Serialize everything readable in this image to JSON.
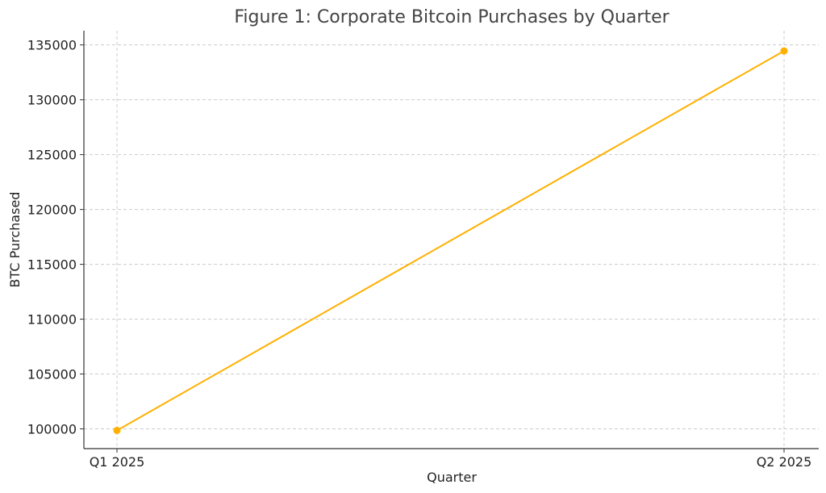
{
  "chart_data": {
    "type": "line",
    "title": "Figure 1: Corporate Bitcoin Purchases by Quarter",
    "xlabel": "Quarter",
    "ylabel": "BTC Purchased",
    "categories": [
      "Q1 2025",
      "Q2 2025"
    ],
    "series": [
      {
        "values": [
          99857,
          134456
        ],
        "color": "#FFB000"
      }
    ],
    "ylim": [
      98200,
      136300
    ],
    "yticks": [
      100000,
      105000,
      110000,
      115000,
      120000,
      125000,
      130000,
      135000
    ],
    "grid": true,
    "legend": "none"
  }
}
